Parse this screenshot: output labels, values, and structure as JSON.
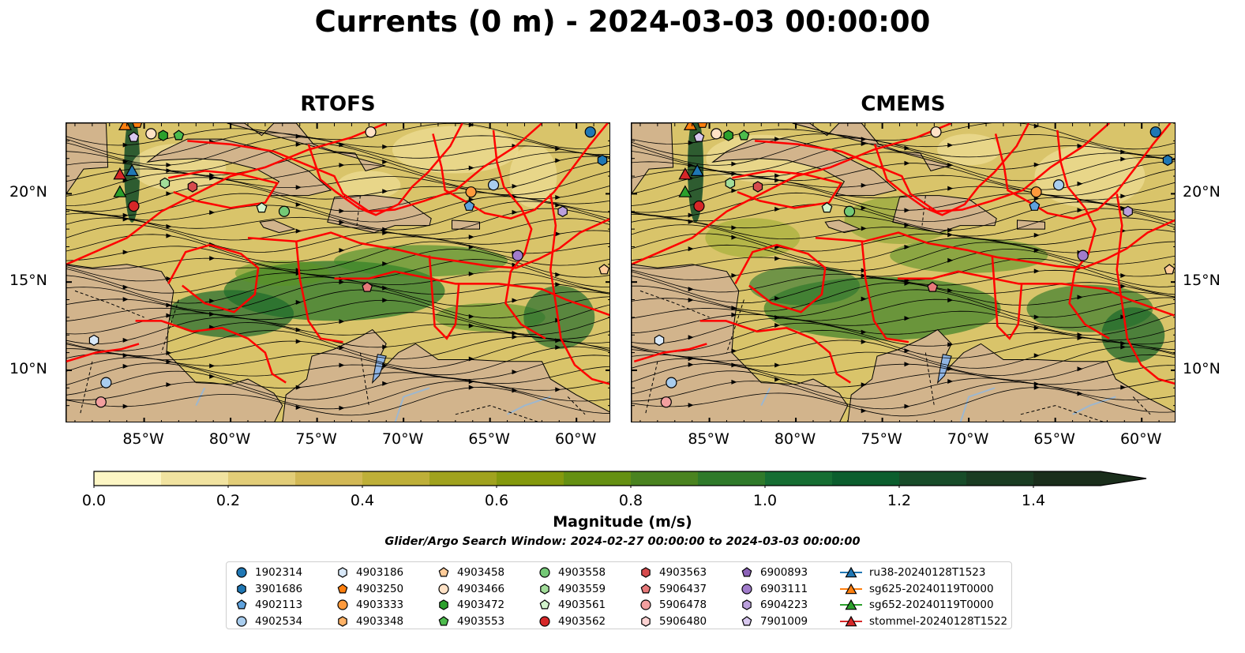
{
  "title": "Currents (0 m) - 2024-03-03 00:00:00",
  "panels": [
    {
      "id": "rtofs",
      "title": "RTOFS"
    },
    {
      "id": "cmems",
      "title": "CMEMS"
    }
  ],
  "axes": {
    "lon_labels": [
      "85°W",
      "80°W",
      "75°W",
      "70°W",
      "65°W",
      "60°W"
    ],
    "lon_values": [
      -85,
      -80,
      -75,
      -70,
      -65,
      -60
    ],
    "lat_labels": [
      "20°N",
      "15°N",
      "10°N"
    ],
    "lat_values": [
      20,
      15,
      10
    ],
    "lon_range": [
      -89.5,
      -58
    ],
    "lat_range": [
      7,
      24
    ]
  },
  "colorbar": {
    "title": "Magnitude (m/s)",
    "tick_labels": [
      "0.0",
      "0.2",
      "0.4",
      "0.6",
      "0.8",
      "1.0",
      "1.2",
      "1.4"
    ],
    "tick_values": [
      0,
      0.2,
      0.4,
      0.6,
      0.8,
      1.0,
      1.2,
      1.4
    ],
    "range": [
      0,
      1.5
    ],
    "extend": "max",
    "colors": [
      "#fdf6c4",
      "#f1e3a0",
      "#e2cd78",
      "#d2b855",
      "#beaf38",
      "#a0a21e",
      "#84990d",
      "#659012",
      "#4a8320",
      "#2f7a2a",
      "#166e33",
      "#0c5e2e",
      "#184c29",
      "#1a3c22",
      "#1a2e1b"
    ]
  },
  "search_window": "Glider/Argo Search Window: 2024-02-27 00:00:00 to 2024-03-03 00:00:00",
  "legend": [
    {
      "label": "1902314",
      "marker": "circle",
      "color": "#1f77b4"
    },
    {
      "label": "3901686",
      "marker": "hexagon",
      "color": "#1f77b4"
    },
    {
      "label": "4902113",
      "marker": "pentagon",
      "color": "#5fa2dd"
    },
    {
      "label": "4902534",
      "marker": "circle",
      "color": "#a9cdee"
    },
    {
      "label": "4903186",
      "marker": "hexagon",
      "color": "#d8e8f8"
    },
    {
      "label": "4903250",
      "marker": "pentagon",
      "color": "#ff7f0e"
    },
    {
      "label": "4903333",
      "marker": "circle",
      "color": "#ff9a3c"
    },
    {
      "label": "4903348",
      "marker": "hexagon",
      "color": "#ffb266"
    },
    {
      "label": "4903458",
      "marker": "pentagon",
      "color": "#ffcc99"
    },
    {
      "label": "4903466",
      "marker": "circle",
      "color": "#ffe2c6"
    },
    {
      "label": "4903472",
      "marker": "hexagon",
      "color": "#2ca02c"
    },
    {
      "label": "4903553",
      "marker": "pentagon",
      "color": "#4cbb4c"
    },
    {
      "label": "4903558",
      "marker": "circle",
      "color": "#74c976"
    },
    {
      "label": "4903559",
      "marker": "hexagon",
      "color": "#a2dd9a"
    },
    {
      "label": "4903561",
      "marker": "pentagon",
      "color": "#d2f3cc"
    },
    {
      "label": "4903562",
      "marker": "circle",
      "color": "#d62728"
    },
    {
      "label": "4903563",
      "marker": "hexagon",
      "color": "#d64b4d"
    },
    {
      "label": "5906437",
      "marker": "pentagon",
      "color": "#e7797a"
    },
    {
      "label": "5906478",
      "marker": "circle",
      "color": "#f29f9f"
    },
    {
      "label": "5906480",
      "marker": "hexagon",
      "color": "#fcd2d2"
    },
    {
      "label": "6900893",
      "marker": "pentagon",
      "color": "#8c62b8"
    },
    {
      "label": "6903111",
      "marker": "circle",
      "color": "#a17ccb"
    },
    {
      "label": "6904223",
      "marker": "hexagon",
      "color": "#bba0dc"
    },
    {
      "label": "7901009",
      "marker": "pentagon",
      "color": "#d8c8ef"
    },
    {
      "label": "ru38-20240128T1523",
      "marker": "triangle-line",
      "color": "#1f77b4"
    },
    {
      "label": "sg625-20240119T0000",
      "marker": "triangle-line",
      "color": "#ff7f0e"
    },
    {
      "label": "sg652-20240119T0000",
      "marker": "triangle-line",
      "color": "#2ca02c"
    },
    {
      "label": "stommel-20240128T1522",
      "marker": "triangle-line",
      "color": "#d62728"
    }
  ],
  "chart_data": {
    "type": "heatmap",
    "title": "Currents (0 m) - 2024-03-03 00:00:00",
    "subplots": [
      "RTOFS",
      "CMEMS"
    ],
    "variable": "Magnitude (m/s)",
    "xlim": [
      -89.5,
      -58
    ],
    "ylim": [
      7,
      24
    ],
    "overlays": [
      "streamlines",
      "red track outlines",
      "glider tracks",
      "Argo floats"
    ],
    "floats": [
      {
        "id": "1902314",
        "lon": -59.2,
        "lat": 23.5
      },
      {
        "id": "3901686",
        "lon": -58.5,
        "lat": 21.9
      },
      {
        "id": "4902113",
        "lon": -66.2,
        "lat": 19.3
      },
      {
        "id": "4902534",
        "lon": -64.8,
        "lat": 20.5
      },
      {
        "id": "4902534",
        "lon": -87.2,
        "lat": 9.3
      },
      {
        "id": "4903186",
        "lon": -87.9,
        "lat": 11.7
      },
      {
        "id": "4903250",
        "lon": -85.4,
        "lat": 24.0
      },
      {
        "id": "4903333",
        "lon": -66.1,
        "lat": 20.1
      },
      {
        "id": "4903458",
        "lon": -58.4,
        "lat": 15.7
      },
      {
        "id": "4903466",
        "lon": -84.6,
        "lat": 23.4
      },
      {
        "id": "4903466",
        "lon": -71.9,
        "lat": 23.5
      },
      {
        "id": "4903472",
        "lon": -83.9,
        "lat": 23.3
      },
      {
        "id": "4903553",
        "lon": -83.0,
        "lat": 23.3
      },
      {
        "id": "4903558",
        "lon": -76.9,
        "lat": 19.0
      },
      {
        "id": "4903559",
        "lon": -83.8,
        "lat": 20.6
      },
      {
        "id": "4903561",
        "lon": -78.2,
        "lat": 19.2
      },
      {
        "id": "4903562",
        "lon": -85.6,
        "lat": 19.3
      },
      {
        "id": "4903563",
        "lon": -82.2,
        "lat": 20.4
      },
      {
        "id": "5906437",
        "lon": -72.1,
        "lat": 14.7
      },
      {
        "id": "5906478",
        "lon": -87.5,
        "lat": 8.2
      },
      {
        "id": "6903111",
        "lon": -63.4,
        "lat": 16.5
      },
      {
        "id": "6904223",
        "lon": -60.8,
        "lat": 19.0
      },
      {
        "id": "7901009",
        "lon": -85.6,
        "lat": 23.2
      }
    ],
    "gliders": [
      {
        "id": "ru38-20240128T1523",
        "lon": -85.7,
        "lat": 21.3
      },
      {
        "id": "sg625-20240119T0000",
        "lon": -86.1,
        "lat": 23.9
      },
      {
        "id": "sg652-20240119T0000",
        "lon": -86.4,
        "lat": 20.1
      },
      {
        "id": "stommel-20240128T1522",
        "lon": -86.4,
        "lat": 21.1
      }
    ]
  }
}
